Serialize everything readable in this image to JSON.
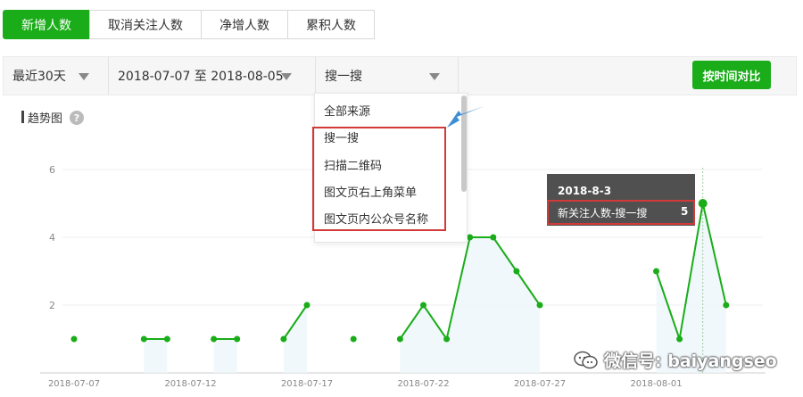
{
  "tabs": [
    {
      "label": "新增人数",
      "active": true
    },
    {
      "label": "取消关注人数",
      "active": false
    },
    {
      "label": "净增人数",
      "active": false
    },
    {
      "label": "累积人数",
      "active": false
    }
  ],
  "filters": {
    "period": "最近30天",
    "date_range": "2018-07-07 至 2018-08-05",
    "source": "搜一搜"
  },
  "compare_button": "按时间对比",
  "section_title": "趋势图",
  "help_glyph": "?",
  "dropdown": {
    "items": [
      "全部来源",
      "搜一搜",
      "扫描二维码",
      "图文页右上角菜单",
      "图文页内公众号名称"
    ]
  },
  "tooltip": {
    "date": "2018-8-3",
    "label": "新关注人数-搜一搜",
    "value": "5"
  },
  "watermark": "微信号: baiyangseo",
  "colors": {
    "accent": "#1aad19",
    "line": "#1aad19",
    "highlight": "#d23a3a"
  },
  "chart_data": {
    "type": "line",
    "ylim": [
      0,
      6
    ],
    "y_ticks": [
      "2",
      "4",
      "6"
    ],
    "x_tick_labels": [
      "2018-07-07",
      "2018-07-12",
      "2018-07-17",
      "2018-07-22",
      "2018-07-27",
      "2018-08-01"
    ],
    "x": [
      "2018-07-07",
      "2018-07-08",
      "2018-07-09",
      "2018-07-10",
      "2018-07-11",
      "2018-07-12",
      "2018-07-13",
      "2018-07-14",
      "2018-07-15",
      "2018-07-16",
      "2018-07-17",
      "2018-07-18",
      "2018-07-19",
      "2018-07-20",
      "2018-07-21",
      "2018-07-22",
      "2018-07-23",
      "2018-07-24",
      "2018-07-25",
      "2018-07-26",
      "2018-07-27",
      "2018-07-28",
      "2018-07-29",
      "2018-07-30",
      "2018-07-31",
      "2018-08-01",
      "2018-08-02",
      "2018-08-03",
      "2018-08-04"
    ],
    "series": [
      {
        "name": "新关注人数-搜一搜",
        "values": [
          1,
          null,
          null,
          1,
          1,
          null,
          1,
          1,
          null,
          1,
          2,
          null,
          1,
          null,
          1,
          2,
          1,
          4,
          4,
          3,
          2,
          null,
          null,
          null,
          null,
          3,
          1,
          5,
          2
        ]
      }
    ]
  }
}
